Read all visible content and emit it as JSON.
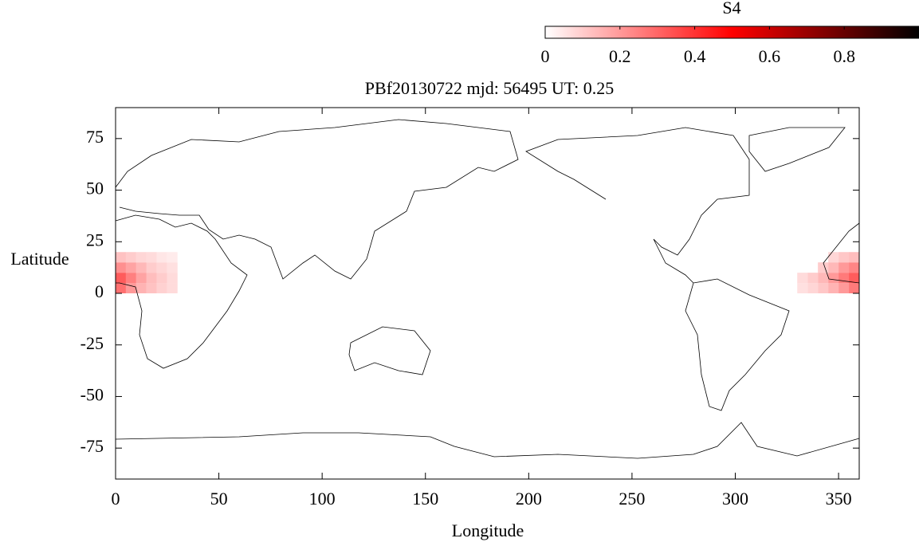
{
  "chart_data": {
    "type": "heatmap",
    "title": "PBf20130722  mjd: 56495  UT:   0.25",
    "x_label": "Longitude",
    "y_label": "Latitude",
    "xlim": [
      0,
      360
    ],
    "ylim": [
      -90,
      90
    ],
    "xticks": [
      0,
      50,
      100,
      150,
      200,
      250,
      300,
      350
    ],
    "yticks": [
      -75,
      -50,
      -25,
      0,
      25,
      50,
      75
    ],
    "colorbar": {
      "title": "S4",
      "lim": [
        0,
        1
      ],
      "ticks": [
        0,
        0.2,
        0.4,
        0.6,
        0.8
      ],
      "stops": [
        "#ffffff",
        "#ff0000",
        "#000000"
      ]
    },
    "cell_size": [
      5,
      5
    ],
    "cells": [
      {
        "lon": 0,
        "lat": 0,
        "value": 0.28
      },
      {
        "lon": 5,
        "lat": 0,
        "value": 0.2
      },
      {
        "lon": 10,
        "lat": 0,
        "value": 0.15
      },
      {
        "lon": 15,
        "lat": 0,
        "value": 0.12
      },
      {
        "lon": 20,
        "lat": 0,
        "value": 0.09
      },
      {
        "lon": 25,
        "lat": 0,
        "value": 0.07
      },
      {
        "lon": 0,
        "lat": 5,
        "value": 0.32
      },
      {
        "lon": 5,
        "lat": 5,
        "value": 0.25
      },
      {
        "lon": 10,
        "lat": 5,
        "value": 0.18
      },
      {
        "lon": 15,
        "lat": 5,
        "value": 0.13
      },
      {
        "lon": 20,
        "lat": 5,
        "value": 0.1
      },
      {
        "lon": 25,
        "lat": 5,
        "value": 0.07
      },
      {
        "lon": 0,
        "lat": 10,
        "value": 0.22
      },
      {
        "lon": 5,
        "lat": 10,
        "value": 0.18
      },
      {
        "lon": 10,
        "lat": 10,
        "value": 0.14
      },
      {
        "lon": 15,
        "lat": 10,
        "value": 0.1
      },
      {
        "lon": 20,
        "lat": 10,
        "value": 0.08
      },
      {
        "lon": 25,
        "lat": 10,
        "value": 0.06
      },
      {
        "lon": 0,
        "lat": 15,
        "value": 0.12
      },
      {
        "lon": 5,
        "lat": 15,
        "value": 0.1
      },
      {
        "lon": 10,
        "lat": 15,
        "value": 0.08
      },
      {
        "lon": 15,
        "lat": 15,
        "value": 0.07
      },
      {
        "lon": 20,
        "lat": 15,
        "value": 0.05
      },
      {
        "lon": 25,
        "lat": 15,
        "value": 0.04
      },
      {
        "lon": 330,
        "lat": 0,
        "value": 0.06
      },
      {
        "lon": 335,
        "lat": 0,
        "value": 0.08
      },
      {
        "lon": 340,
        "lat": 0,
        "value": 0.11
      },
      {
        "lon": 345,
        "lat": 0,
        "value": 0.15
      },
      {
        "lon": 350,
        "lat": 0,
        "value": 0.2
      },
      {
        "lon": 355,
        "lat": 0,
        "value": 0.26
      },
      {
        "lon": 330,
        "lat": 5,
        "value": 0.07
      },
      {
        "lon": 335,
        "lat": 5,
        "value": 0.1
      },
      {
        "lon": 340,
        "lat": 5,
        "value": 0.14
      },
      {
        "lon": 345,
        "lat": 5,
        "value": 0.2
      },
      {
        "lon": 350,
        "lat": 5,
        "value": 0.26
      },
      {
        "lon": 355,
        "lat": 5,
        "value": 0.32
      },
      {
        "lon": 340,
        "lat": 10,
        "value": 0.1
      },
      {
        "lon": 345,
        "lat": 10,
        "value": 0.14
      },
      {
        "lon": 350,
        "lat": 10,
        "value": 0.2
      },
      {
        "lon": 355,
        "lat": 10,
        "value": 0.24
      },
      {
        "lon": 345,
        "lat": 15,
        "value": 0.08
      },
      {
        "lon": 350,
        "lat": 15,
        "value": 0.11
      },
      {
        "lon": 355,
        "lat": 15,
        "value": 0.13
      }
    ]
  }
}
